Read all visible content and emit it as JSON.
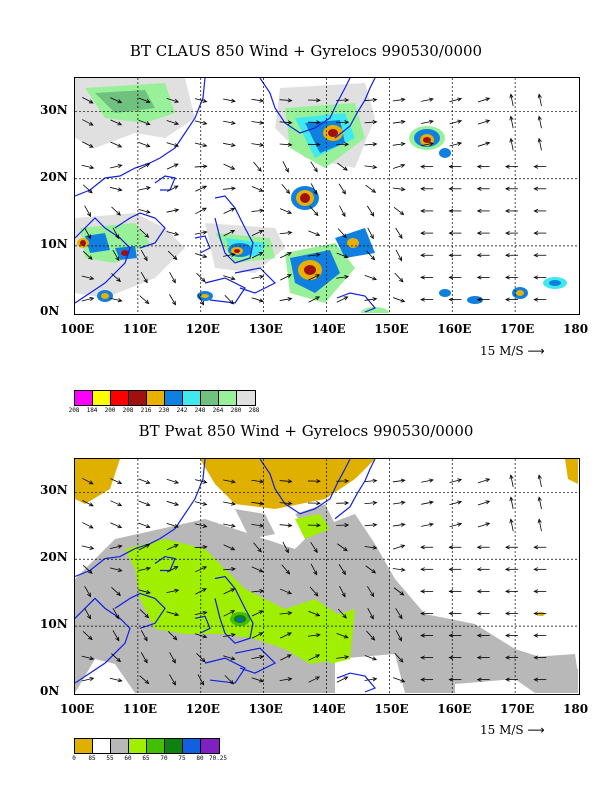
{
  "top": {
    "title": "BT CLAUS 850 Wind + Gyrelocs 990530/0000",
    "scale_label": "15 M/S",
    "colorbar": {
      "labels": [
        "208",
        "184",
        "200",
        "208",
        "216",
        "230",
        "242",
        "248",
        "264",
        "280",
        "288"
      ],
      "colors": [
        "#ff00ff",
        "#ffff00",
        "#ff0000",
        "#a01010",
        "#e8b000",
        "#1080e0",
        "#40e8f0",
        "#70c080",
        "#98f098",
        "#e0e0e0"
      ]
    }
  },
  "bottom": {
    "title": "BT Pwat 850 Wind + Gyrelocs 990530/0000",
    "scale_label": "15 M/S",
    "colorbar": {
      "labels": [
        "0",
        "85",
        "55",
        "60",
        "65",
        "70",
        "75",
        "80",
        "70.25"
      ],
      "colors": [
        "#e0b000",
        "#ffffff",
        "#b8b8b8",
        "#a0ee00",
        "#40c000",
        "#108010",
        "#1060e0",
        "#8020c0"
      ]
    }
  },
  "axes": {
    "x_ticks": [
      "100E",
      "110E",
      "120E",
      "130E",
      "140E",
      "150E",
      "160E",
      "170E",
      "180"
    ],
    "y_ticks": [
      "0N",
      "10N",
      "20N",
      "30N"
    ],
    "lon_range": [
      100,
      180
    ],
    "lat_range": [
      0,
      35
    ]
  }
}
